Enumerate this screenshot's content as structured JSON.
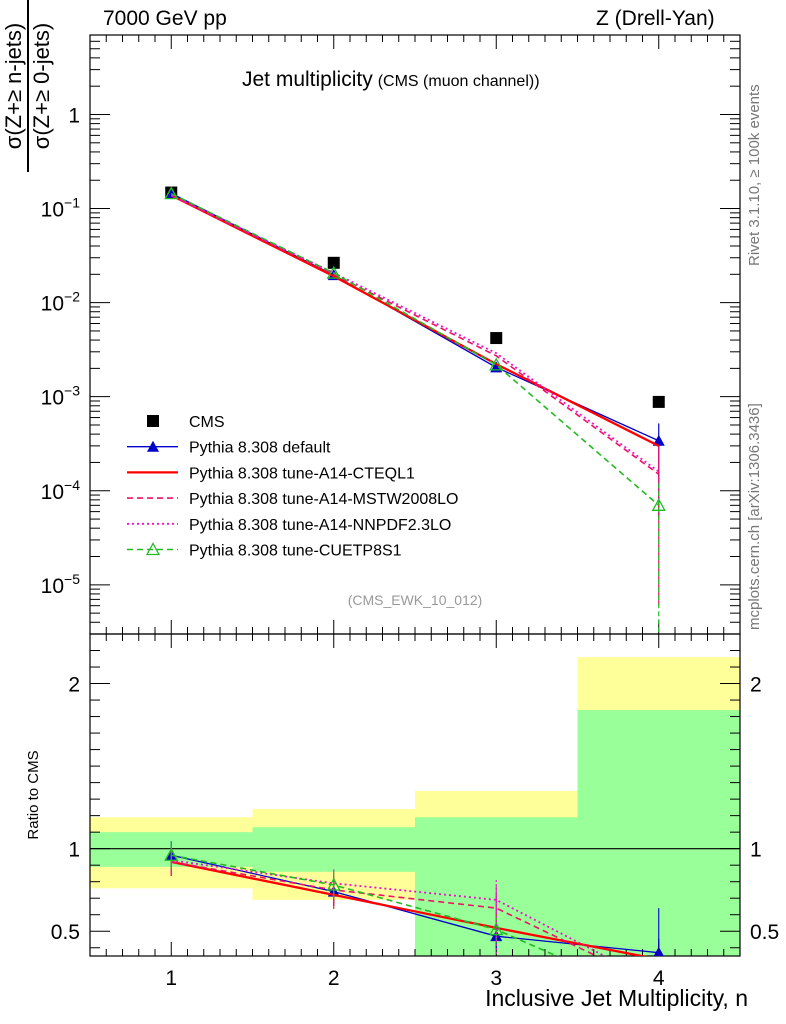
{
  "header": {
    "left": "7000 GeV pp",
    "right": "Z (Drell-Yan)"
  },
  "side_text": {
    "top": "Rivet 3.1.10, ≥ 100k events",
    "bottom": "mcplots.cern.ch [arXiv:1306.3436]"
  },
  "y_label": {
    "numerator": "σ(Z+≥ n-jets)",
    "denominator": "σ(Z+≥ 0-jets)"
  },
  "chart_data": [
    {
      "type": "line",
      "title": "Jet multiplicity",
      "subtitle": "(CMS (muon channel))",
      "watermark": "(CMS_EWK_10_012)",
      "y_scale": "log",
      "ylim": [
        3e-06,
        7
      ],
      "xlim": [
        0.5,
        4.5
      ],
      "x_ticks": [
        "1",
        "2",
        "3",
        "4"
      ],
      "y_ticks": [
        {
          "value": 1,
          "label": "1"
        },
        {
          "value": 0.1,
          "label": "10",
          "exp": "−1"
        },
        {
          "value": 0.01,
          "label": "10",
          "exp": "−2"
        },
        {
          "value": 0.001,
          "label": "10",
          "exp": "−3"
        },
        {
          "value": 0.0001,
          "label": "10",
          "exp": "−4"
        },
        {
          "value": 1e-05,
          "label": "10",
          "exp": "−5"
        }
      ],
      "legend_position": "bottom-left",
      "x": [
        1,
        2,
        3,
        4
      ],
      "series": [
        {
          "name": "CMS",
          "color": "#000000",
          "style": "points",
          "marker": "square",
          "values": [
            0.148,
            0.0265,
            0.0042,
            0.00088
          ]
        },
        {
          "name": "Pythia 8.308 default",
          "color": "#0000cc",
          "style": "solid",
          "marker": "triangle-filled",
          "values": [
            0.145,
            0.0196,
            0.00205,
            0.00034
          ]
        },
        {
          "name": "Pythia 8.308 tune-A14-CTEQL1",
          "color": "#ff0000",
          "style": "solid-thick",
          "marker": "none",
          "values": [
            0.138,
            0.0191,
            0.00222,
            0.0003
          ]
        },
        {
          "name": "Pythia 8.308 tune-A14-MSTW2008LO",
          "color": "#ee1166",
          "style": "dashed",
          "marker": "none",
          "values": [
            0.137,
            0.0199,
            0.00272,
            0.00015
          ]
        },
        {
          "name": "Pythia 8.308 tune-A14-NNPDF2.3LO",
          "color": "#ee11cc",
          "style": "dotted",
          "marker": "none",
          "values": [
            0.139,
            0.0207,
            0.0029,
            0.00016
          ]
        },
        {
          "name": "Pythia 8.308 tune-CUETP8S1",
          "color": "#22bb22",
          "style": "dashed",
          "marker": "triangle-open",
          "values": [
            0.144,
            0.0206,
            0.00218,
            7e-05
          ]
        }
      ]
    },
    {
      "type": "line",
      "ylabel": "Ratio to CMS",
      "xlabel": "Inclusive Jet Multiplicity, n",
      "ylim": [
        0.35,
        2.3
      ],
      "xlim": [
        0.5,
        4.5
      ],
      "x_ticks": [
        "1",
        "2",
        "3",
        "4"
      ],
      "y_ticks": [
        {
          "value": 0.5,
          "label": "0.5"
        },
        {
          "value": 1,
          "label": "1"
        },
        {
          "value": 2,
          "label": "2"
        }
      ],
      "uncertainty_bands": [
        {
          "x_range": [
            0.5,
            1.5
          ],
          "inner": [
            0.89,
            1.1
          ],
          "outer": [
            0.76,
            1.19
          ]
        },
        {
          "x_range": [
            1.5,
            2.5
          ],
          "inner": [
            0.86,
            1.13
          ],
          "outer": [
            0.69,
            1.24
          ]
        },
        {
          "x_range": [
            2.5,
            3.5
          ],
          "inner": [
            0.35,
            1.19
          ],
          "outer": [
            0.35,
            1.35
          ]
        },
        {
          "x_range": [
            3.5,
            4.5
          ],
          "inner": [
            0.35,
            1.84
          ],
          "outer": [
            0.35,
            2.16
          ]
        }
      ],
      "x": [
        1,
        2,
        3,
        4
      ],
      "series": [
        {
          "name": "Pythia 8.308 default",
          "values": [
            0.96,
            0.74,
            0.47,
            0.37
          ]
        },
        {
          "name": "Pythia 8.308 tune-A14-CTEQL1",
          "values": [
            0.92,
            0.72,
            0.52,
            0.33
          ]
        },
        {
          "name": "Pythia 8.308 tune-A14-MSTW2008LO",
          "values": [
            0.92,
            0.75,
            0.64,
            0.17
          ]
        },
        {
          "name": "Pythia 8.308 tune-A14-NNPDF2.3LO",
          "values": [
            0.93,
            0.79,
            0.69,
            0.18
          ]
        },
        {
          "name": "Pythia 8.308 tune-CUETP8S1",
          "values": [
            0.96,
            0.78,
            0.51,
            0.08
          ]
        }
      ]
    }
  ]
}
